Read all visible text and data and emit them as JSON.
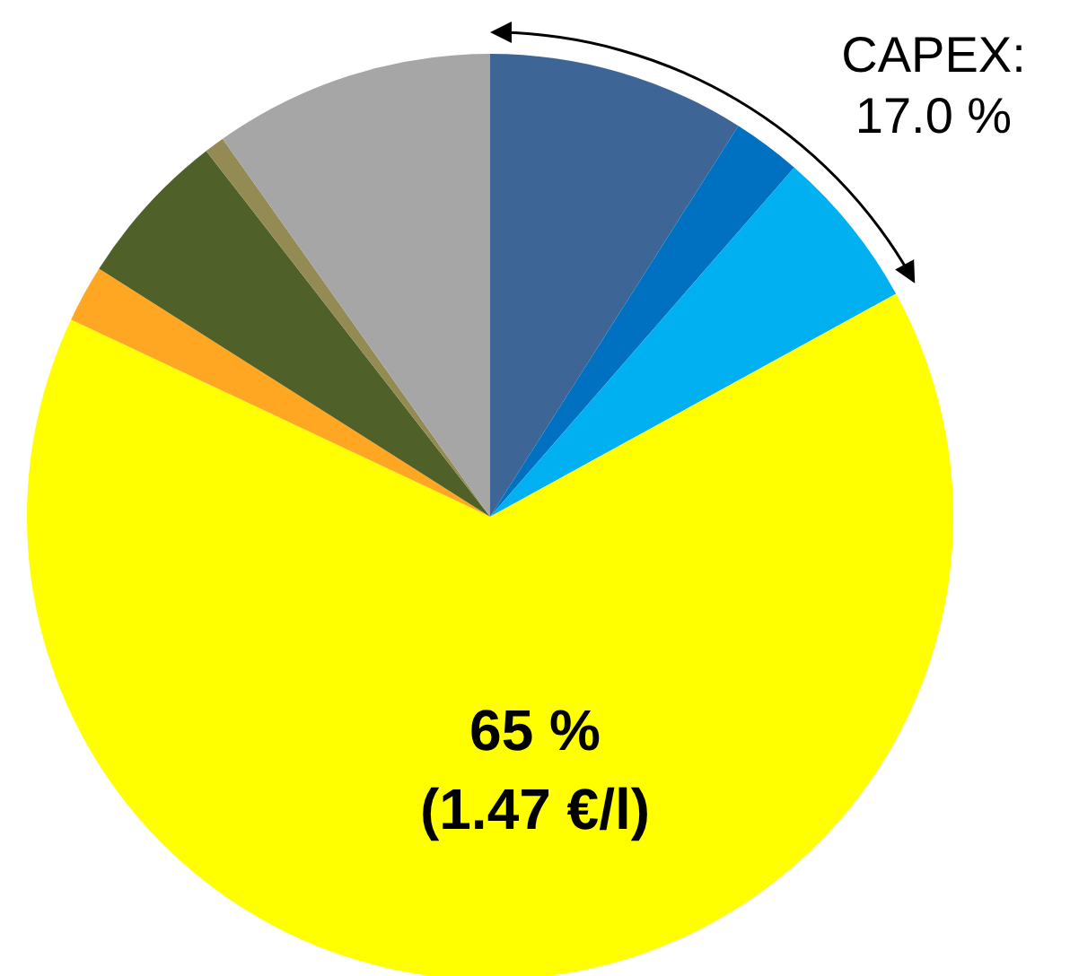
{
  "chart_data": {
    "type": "pie",
    "categories": [
      null,
      null,
      null,
      null,
      null,
      null,
      null,
      null
    ],
    "values": [
      9,
      2.4,
      5.6,
      65,
      2,
      5.5,
      0.7,
      9.8
    ],
    "colors": [
      "#3d6596",
      "#0070c0",
      "#00b0f0",
      "#ffff00",
      "#ffa722",
      "#4f6128",
      "#948a54",
      "#a6a6a6"
    ],
    "annotations": [
      "CAPEX:\n17.0 %",
      "65 %\n(1.47 €/l)"
    ]
  }
}
